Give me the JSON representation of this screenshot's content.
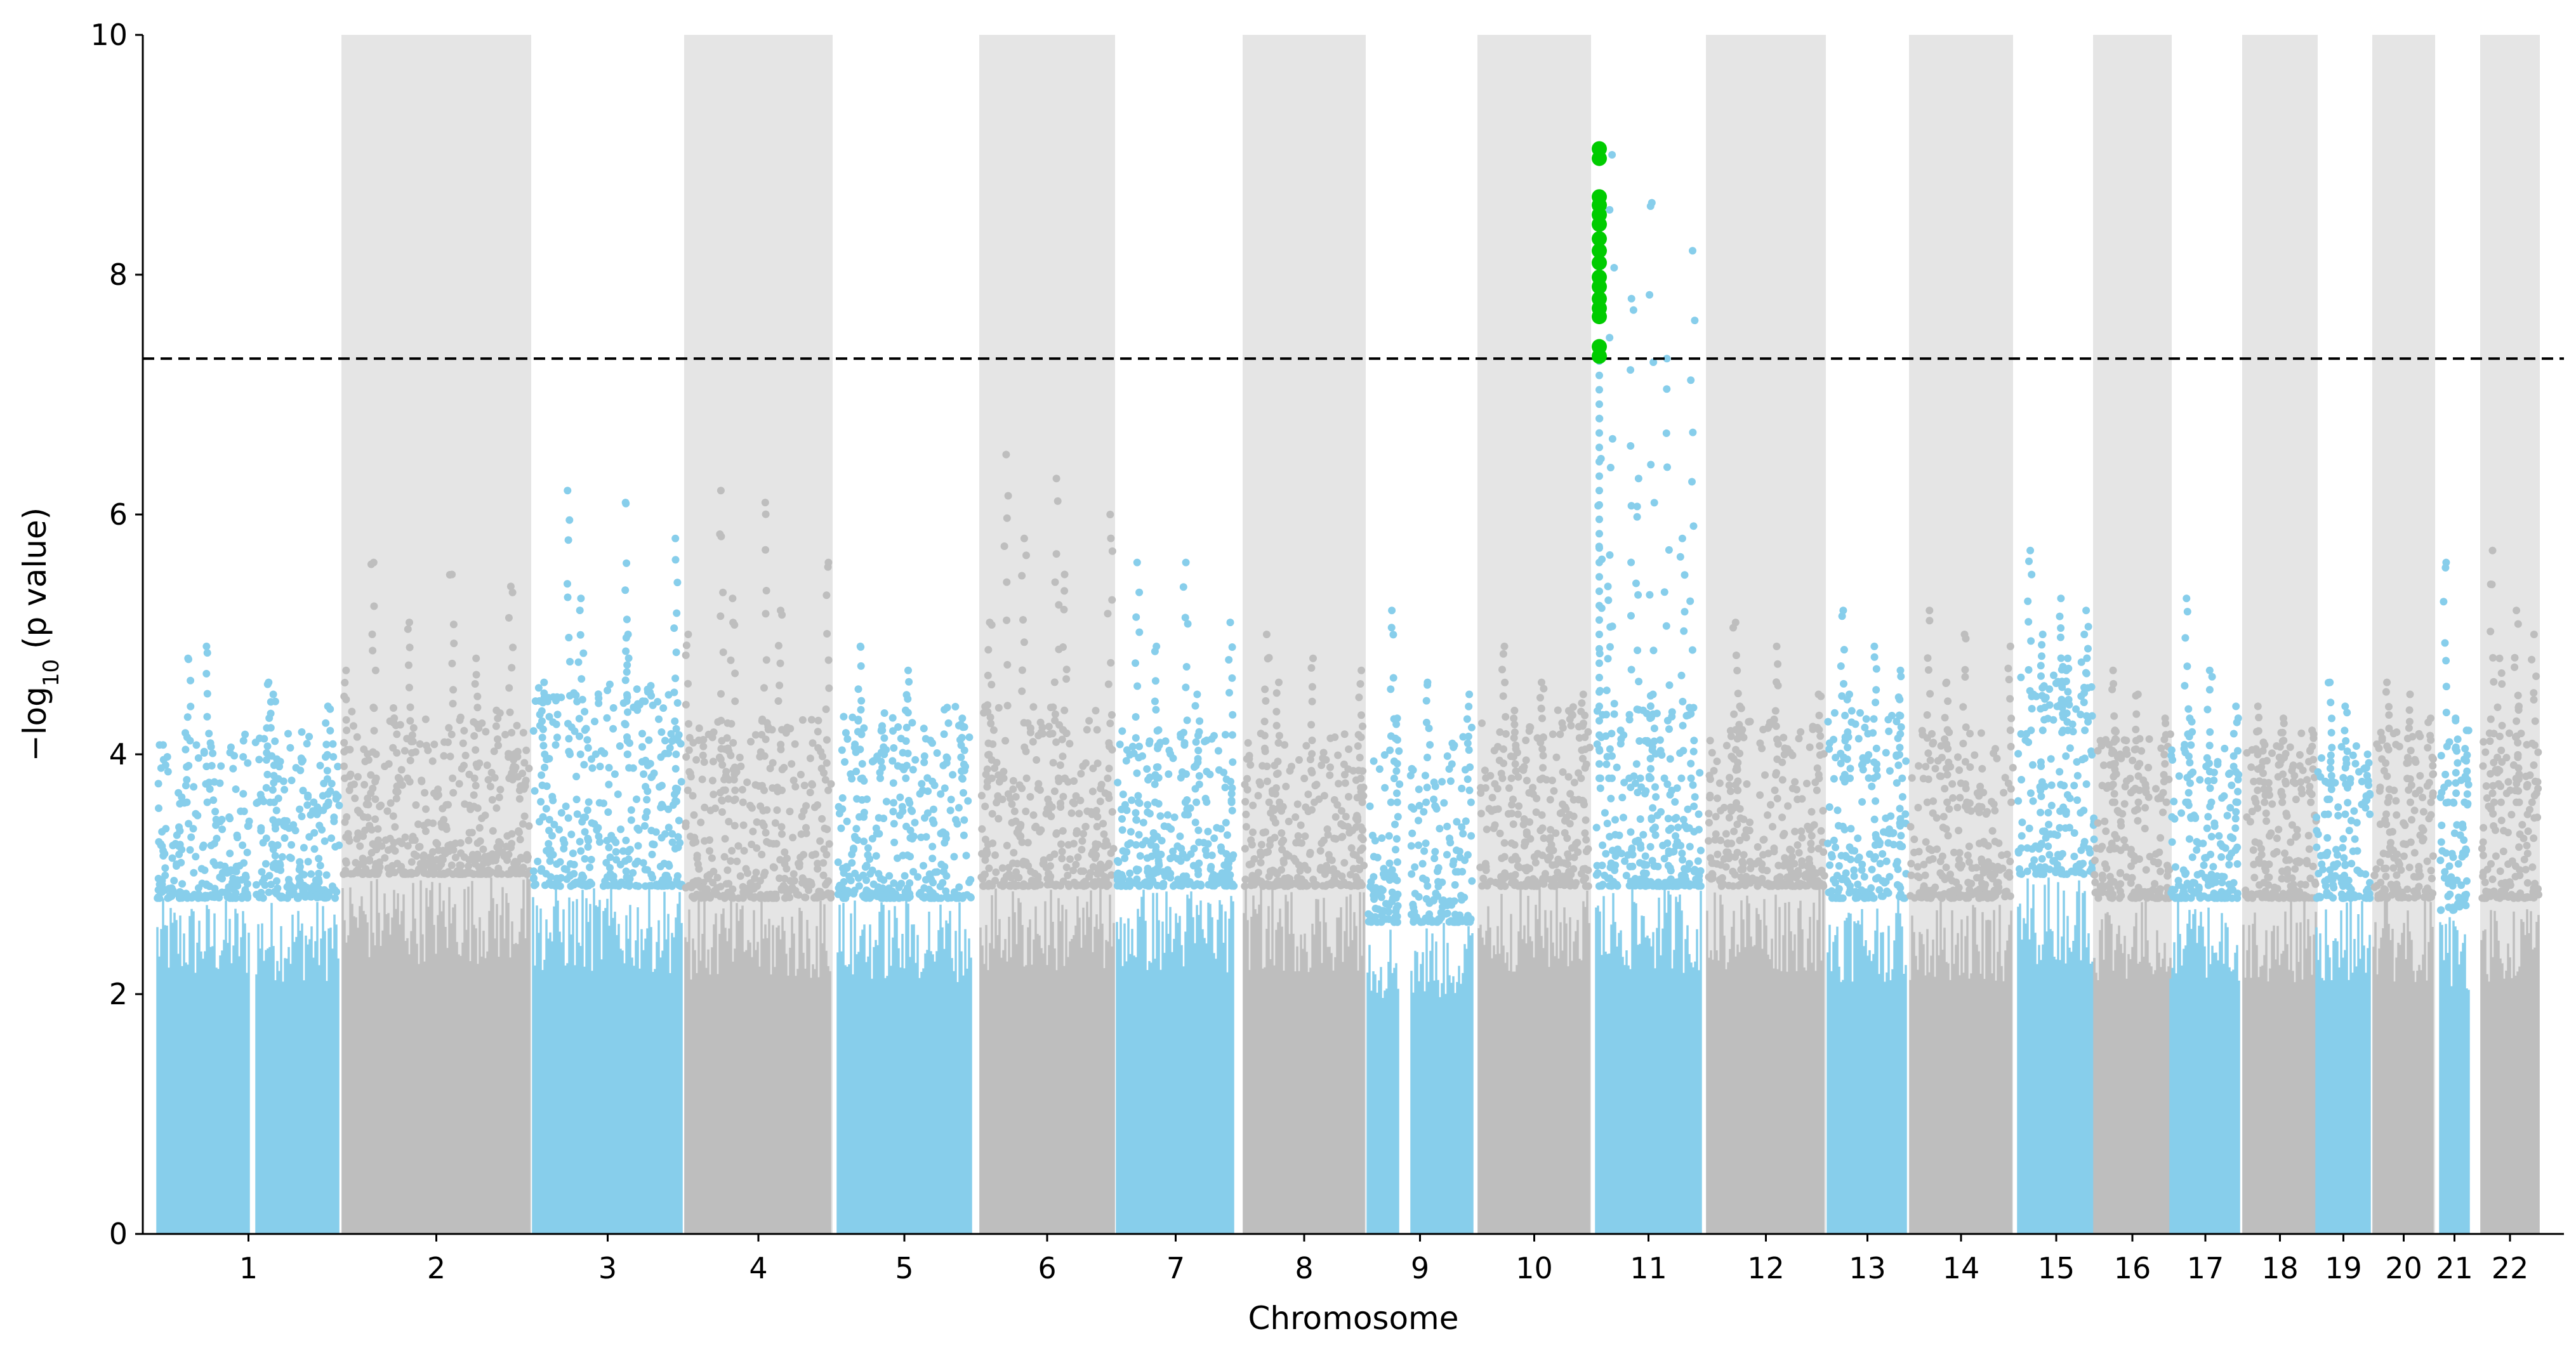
{
  "chart_data": {
    "type": "scatter",
    "subtype": "manhattan",
    "title": "",
    "xlabel": "Chromosome",
    "ylabel_prefix": "−log",
    "ylabel_sub": "10",
    "ylabel_suffix": " (p value)",
    "ylim": [
      0,
      10
    ],
    "yticks": [
      "0",
      "2",
      "4",
      "6",
      "8",
      "10"
    ],
    "significance_threshold": 7.3,
    "colors": {
      "odd_chromosome": "#87ceeb",
      "even_chromosome": "#bebebe",
      "band": "#e5e5e5",
      "significant": "#00cc00",
      "threshold_line": "#000000"
    },
    "chromosomes": [
      {
        "label": "1",
        "bulk_max": 2.8,
        "spread_max": 3.6,
        "peaks": [
          4.8,
          4.6,
          4.4,
          4.9,
          4.5
        ]
      },
      {
        "label": "2",
        "bulk_max": 3.0,
        "spread_max": 3.8,
        "peaks": [
          5.6,
          5.5,
          5.4,
          5.1,
          4.8,
          4.7
        ]
      },
      {
        "label": "3",
        "bulk_max": 2.9,
        "spread_max": 4.0,
        "peaks": [
          6.2,
          6.1,
          5.8,
          5.3,
          5.0,
          4.6
        ]
      },
      {
        "label": "4",
        "bulk_max": 2.8,
        "spread_max": 3.7,
        "peaks": [
          6.2,
          6.1,
          5.6,
          5.3,
          5.2,
          5.0
        ]
      },
      {
        "label": "5",
        "bulk_max": 2.8,
        "spread_max": 3.8,
        "peaks": [
          4.9,
          4.7,
          4.3,
          4.2
        ]
      },
      {
        "label": "6",
        "bulk_max": 2.9,
        "spread_max": 3.8,
        "peaks": [
          6.5,
          6.3,
          6.0,
          5.8,
          5.5,
          5.1
        ]
      },
      {
        "label": "7",
        "bulk_max": 2.9,
        "spread_max": 3.6,
        "peaks": [
          5.6,
          5.6,
          5.1,
          4.9,
          4.5
        ]
      },
      {
        "label": "8",
        "bulk_max": 2.9,
        "spread_max": 3.6,
        "peaks": [
          5.0,
          4.8,
          4.7,
          4.6
        ]
      },
      {
        "label": "9",
        "bulk_max": 2.6,
        "spread_max": 3.6,
        "peaks": [
          5.2,
          4.6,
          4.5,
          4.3
        ]
      },
      {
        "label": "10",
        "bulk_max": 2.9,
        "spread_max": 3.8,
        "peaks": [
          4.9,
          4.6,
          4.5,
          4.3
        ]
      },
      {
        "label": "11",
        "bulk_max": 2.9,
        "spread_max": 3.8,
        "peaks": [
          9.0,
          8.6,
          8.2,
          7.8,
          7.3,
          6.8,
          6.3,
          5.8,
          5.4,
          4.5
        ],
        "significant_values": [
          9.05,
          8.97,
          8.65,
          8.58,
          8.5,
          8.42,
          8.3,
          8.2,
          8.1,
          7.98,
          7.9,
          7.8,
          7.72,
          7.65,
          7.4,
          7.32
        ]
      },
      {
        "label": "12",
        "bulk_max": 2.9,
        "spread_max": 3.7,
        "peaks": [
          5.1,
          4.9,
          4.5,
          4.4
        ]
      },
      {
        "label": "13",
        "bulk_max": 2.8,
        "spread_max": 3.8,
        "peaks": [
          5.2,
          4.9,
          4.7,
          4.5
        ]
      },
      {
        "label": "14",
        "bulk_max": 2.8,
        "spread_max": 3.6,
        "peaks": [
          5.2,
          5.0,
          4.9,
          4.6
        ]
      },
      {
        "label": "15",
        "bulk_max": 3.0,
        "spread_max": 4.2,
        "peaks": [
          5.7,
          5.3,
          5.2,
          5.0,
          4.8
        ]
      },
      {
        "label": "16",
        "bulk_max": 2.8,
        "spread_max": 3.6,
        "peaks": [
          4.7,
          4.5,
          4.3,
          4.2
        ]
      },
      {
        "label": "17",
        "bulk_max": 2.8,
        "spread_max": 3.6,
        "peaks": [
          5.3,
          4.7,
          4.4,
          4.3
        ]
      },
      {
        "label": "18",
        "bulk_max": 2.8,
        "spread_max": 3.6,
        "peaks": [
          4.4,
          4.3,
          4.2,
          4.1
        ]
      },
      {
        "label": "19",
        "bulk_max": 2.8,
        "spread_max": 3.5,
        "peaks": [
          4.6,
          4.4,
          4.0
        ]
      },
      {
        "label": "20",
        "bulk_max": 2.8,
        "spread_max": 3.6,
        "peaks": [
          4.6,
          4.5,
          4.3
        ]
      },
      {
        "label": "21",
        "bulk_max": 2.7,
        "spread_max": 3.6,
        "peaks": [
          5.6,
          4.3,
          4.2
        ]
      },
      {
        "label": "22",
        "bulk_max": 2.8,
        "spread_max": 3.6,
        "peaks": [
          5.7,
          5.2,
          5.0,
          4.8,
          4.4
        ]
      }
    ]
  }
}
